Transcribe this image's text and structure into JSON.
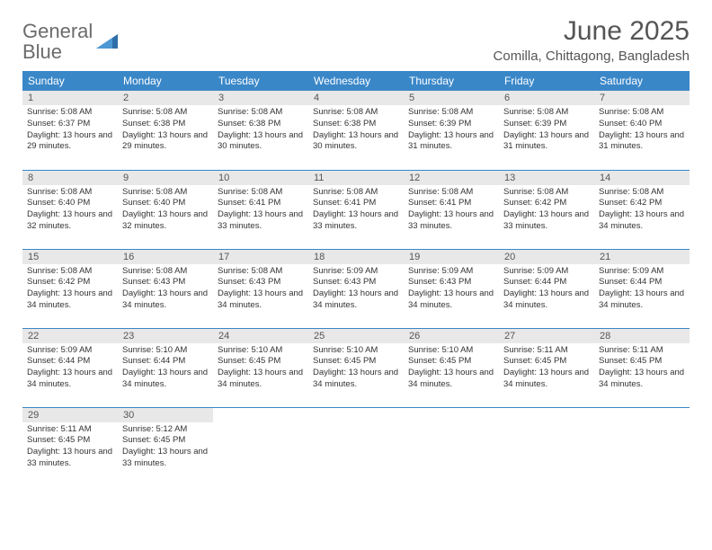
{
  "brand": {
    "word1": "General",
    "word2": "Blue"
  },
  "title": "June 2025",
  "location": "Comilla, Chittagong, Bangladesh",
  "colors": {
    "header_bg": "#3a87c8",
    "header_fg": "#ffffff",
    "daynum_bg": "#e8e8e8",
    "text": "#333333",
    "rule": "#3a87c8"
  },
  "weekdays": [
    "Sunday",
    "Monday",
    "Tuesday",
    "Wednesday",
    "Thursday",
    "Friday",
    "Saturday"
  ],
  "days": [
    {
      "n": 1,
      "sunrise": "5:08 AM",
      "sunset": "6:37 PM",
      "daylight": "13 hours and 29 minutes."
    },
    {
      "n": 2,
      "sunrise": "5:08 AM",
      "sunset": "6:38 PM",
      "daylight": "13 hours and 29 minutes."
    },
    {
      "n": 3,
      "sunrise": "5:08 AM",
      "sunset": "6:38 PM",
      "daylight": "13 hours and 30 minutes."
    },
    {
      "n": 4,
      "sunrise": "5:08 AM",
      "sunset": "6:38 PM",
      "daylight": "13 hours and 30 minutes."
    },
    {
      "n": 5,
      "sunrise": "5:08 AM",
      "sunset": "6:39 PM",
      "daylight": "13 hours and 31 minutes."
    },
    {
      "n": 6,
      "sunrise": "5:08 AM",
      "sunset": "6:39 PM",
      "daylight": "13 hours and 31 minutes."
    },
    {
      "n": 7,
      "sunrise": "5:08 AM",
      "sunset": "6:40 PM",
      "daylight": "13 hours and 31 minutes."
    },
    {
      "n": 8,
      "sunrise": "5:08 AM",
      "sunset": "6:40 PM",
      "daylight": "13 hours and 32 minutes."
    },
    {
      "n": 9,
      "sunrise": "5:08 AM",
      "sunset": "6:40 PM",
      "daylight": "13 hours and 32 minutes."
    },
    {
      "n": 10,
      "sunrise": "5:08 AM",
      "sunset": "6:41 PM",
      "daylight": "13 hours and 33 minutes."
    },
    {
      "n": 11,
      "sunrise": "5:08 AM",
      "sunset": "6:41 PM",
      "daylight": "13 hours and 33 minutes."
    },
    {
      "n": 12,
      "sunrise": "5:08 AM",
      "sunset": "6:41 PM",
      "daylight": "13 hours and 33 minutes."
    },
    {
      "n": 13,
      "sunrise": "5:08 AM",
      "sunset": "6:42 PM",
      "daylight": "13 hours and 33 minutes."
    },
    {
      "n": 14,
      "sunrise": "5:08 AM",
      "sunset": "6:42 PM",
      "daylight": "13 hours and 34 minutes."
    },
    {
      "n": 15,
      "sunrise": "5:08 AM",
      "sunset": "6:42 PM",
      "daylight": "13 hours and 34 minutes."
    },
    {
      "n": 16,
      "sunrise": "5:08 AM",
      "sunset": "6:43 PM",
      "daylight": "13 hours and 34 minutes."
    },
    {
      "n": 17,
      "sunrise": "5:08 AM",
      "sunset": "6:43 PM",
      "daylight": "13 hours and 34 minutes."
    },
    {
      "n": 18,
      "sunrise": "5:09 AM",
      "sunset": "6:43 PM",
      "daylight": "13 hours and 34 minutes."
    },
    {
      "n": 19,
      "sunrise": "5:09 AM",
      "sunset": "6:43 PM",
      "daylight": "13 hours and 34 minutes."
    },
    {
      "n": 20,
      "sunrise": "5:09 AM",
      "sunset": "6:44 PM",
      "daylight": "13 hours and 34 minutes."
    },
    {
      "n": 21,
      "sunrise": "5:09 AM",
      "sunset": "6:44 PM",
      "daylight": "13 hours and 34 minutes."
    },
    {
      "n": 22,
      "sunrise": "5:09 AM",
      "sunset": "6:44 PM",
      "daylight": "13 hours and 34 minutes."
    },
    {
      "n": 23,
      "sunrise": "5:10 AM",
      "sunset": "6:44 PM",
      "daylight": "13 hours and 34 minutes."
    },
    {
      "n": 24,
      "sunrise": "5:10 AM",
      "sunset": "6:45 PM",
      "daylight": "13 hours and 34 minutes."
    },
    {
      "n": 25,
      "sunrise": "5:10 AM",
      "sunset": "6:45 PM",
      "daylight": "13 hours and 34 minutes."
    },
    {
      "n": 26,
      "sunrise": "5:10 AM",
      "sunset": "6:45 PM",
      "daylight": "13 hours and 34 minutes."
    },
    {
      "n": 27,
      "sunrise": "5:11 AM",
      "sunset": "6:45 PM",
      "daylight": "13 hours and 34 minutes."
    },
    {
      "n": 28,
      "sunrise": "5:11 AM",
      "sunset": "6:45 PM",
      "daylight": "13 hours and 34 minutes."
    },
    {
      "n": 29,
      "sunrise": "5:11 AM",
      "sunset": "6:45 PM",
      "daylight": "13 hours and 33 minutes."
    },
    {
      "n": 30,
      "sunrise": "5:12 AM",
      "sunset": "6:45 PM",
      "daylight": "13 hours and 33 minutes."
    }
  ],
  "labels": {
    "sunrise": "Sunrise:",
    "sunset": "Sunset:",
    "daylight": "Daylight:"
  },
  "layout": {
    "start_weekday": 0,
    "rows": 5,
    "cols": 7
  }
}
